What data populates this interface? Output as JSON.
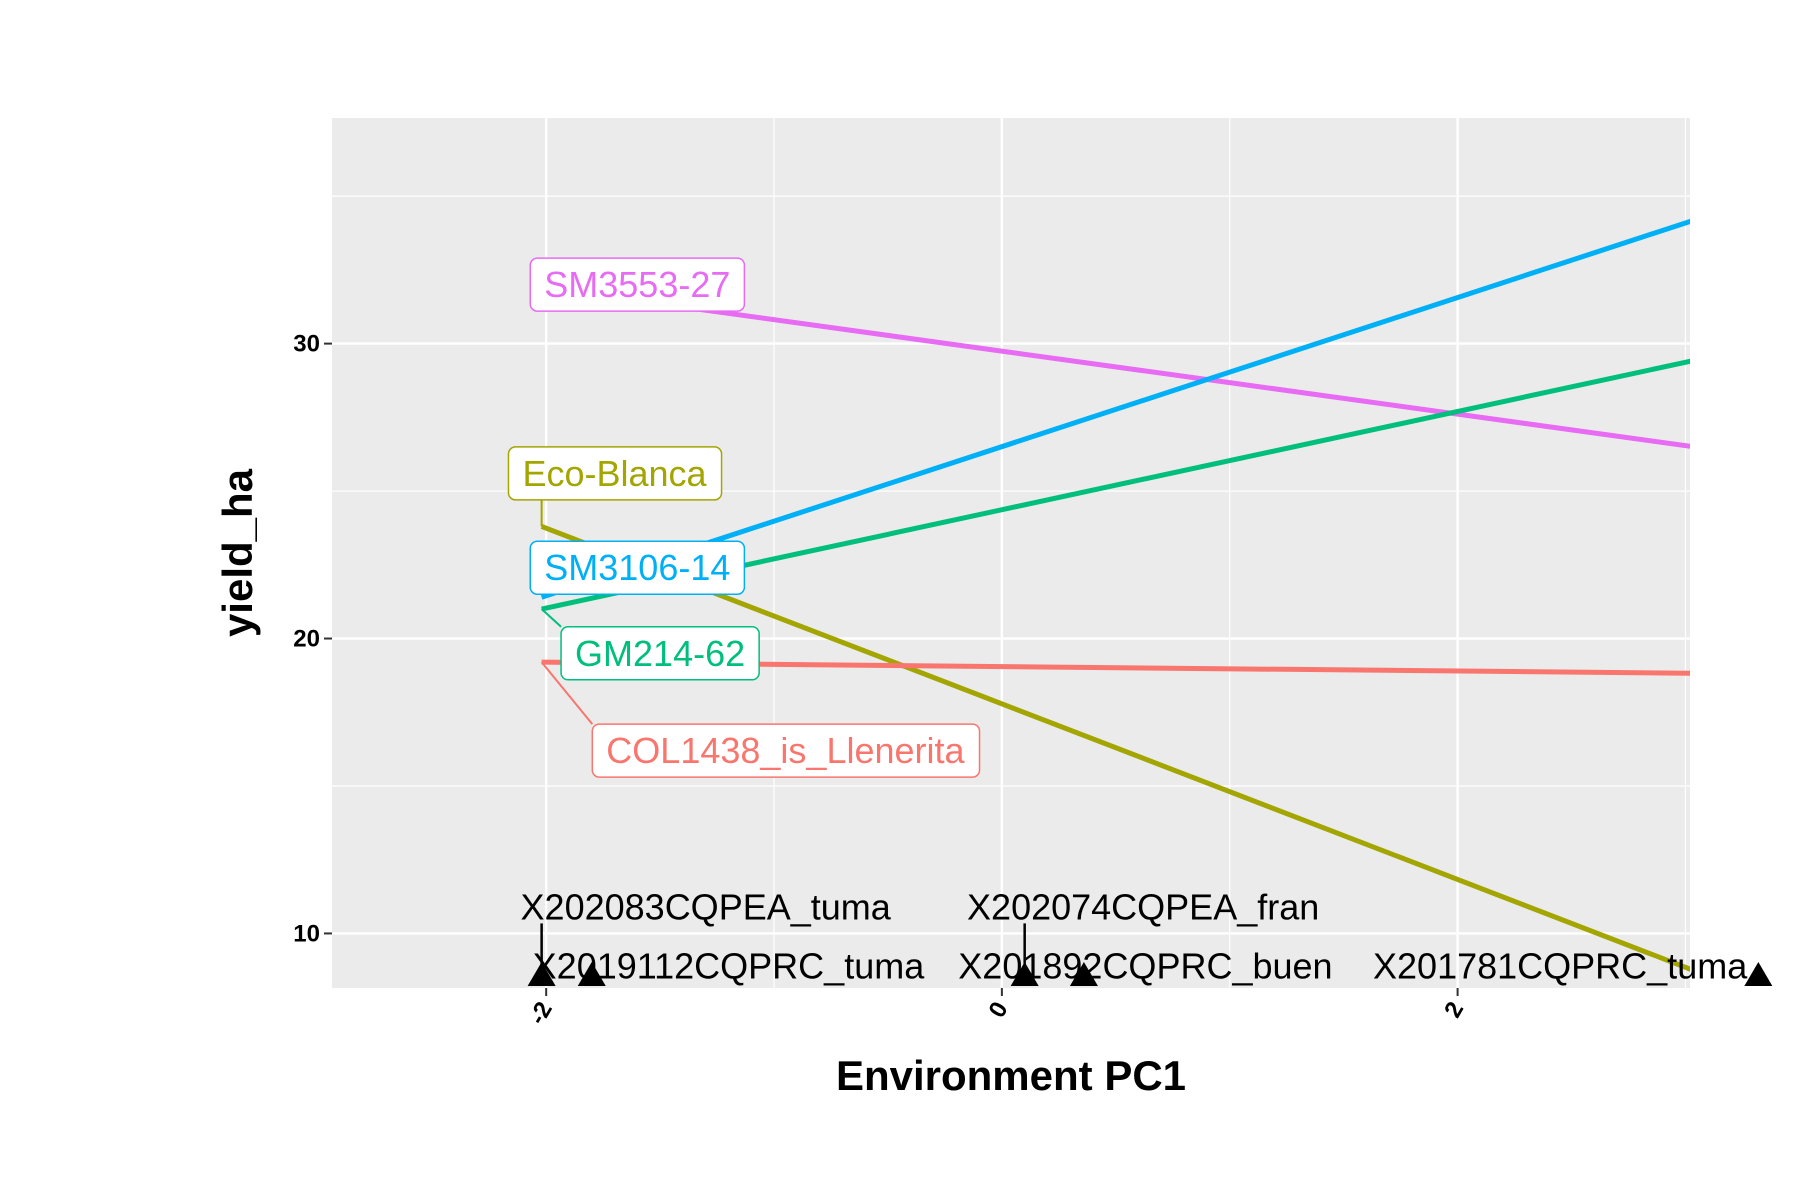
{
  "chart_data": {
    "type": "line",
    "title": "",
    "xlabel": "Environment PC1",
    "ylabel": "yield_ha",
    "xlim": [
      -2.94,
      3.02
    ],
    "ylim": [
      8.15,
      37.65
    ],
    "x_ticks": [
      {
        "value": -2,
        "label": "-2"
      },
      {
        "value": 0,
        "label": "0"
      },
      {
        "value": 2,
        "label": "2"
      }
    ],
    "y_ticks": [
      {
        "value": 10,
        "label": "10"
      },
      {
        "value": 20,
        "label": "20"
      },
      {
        "value": 30,
        "label": "30"
      }
    ],
    "grid": true,
    "legend": "none",
    "series": [
      {
        "name": "SM3553-27",
        "color": "#E76BF3",
        "x": [
          -2.02,
          3.32
        ],
        "y": [
          31.9,
          26.2
        ],
        "label_anchor": [
          -1.6,
          32.0
        ]
      },
      {
        "name": "SM3106-14",
        "color": "#00B0F6",
        "x": [
          -2.02,
          3.32
        ],
        "y": [
          21.4,
          34.9
        ],
        "label_anchor": [
          -1.6,
          22.4
        ]
      },
      {
        "name": "GM214-62",
        "color": "#00BF7D",
        "x": [
          -2.02,
          3.32
        ],
        "y": [
          21.0,
          29.9
        ],
        "label_anchor": [
          -1.5,
          19.5
        ]
      },
      {
        "name": "Eco-Blanca",
        "color": "#A3A500",
        "x": [
          -2.02,
          3.32
        ],
        "y": [
          23.8,
          7.9
        ],
        "label_anchor": [
          -1.7,
          25.6
        ]
      },
      {
        "name": "COL1438_is_Llenerita",
        "color": "#F8766D",
        "x": [
          -2.02,
          3.32
        ],
        "y": [
          19.2,
          18.8
        ],
        "label_anchor": [
          -0.95,
          16.2
        ]
      }
    ],
    "environments": [
      {
        "label": "X202083CQPEA_tuma",
        "x": -2.02,
        "label_anchor": [
          -1.3,
          10.9
        ]
      },
      {
        "label": "X2019112CQPRC_tuma",
        "x": -1.8,
        "label_anchor": [
          -1.2,
          8.9
        ]
      },
      {
        "label": "X202074CQPEA_fran",
        "x": 0.1,
        "label_anchor": [
          0.62,
          10.9
        ]
      },
      {
        "label": "X201892CQPRC_buen",
        "x": 0.36,
        "label_anchor": [
          0.63,
          8.9
        ]
      },
      {
        "label": "X201781CQPRC_tuma",
        "x": 3.32,
        "label_anchor": [
          2.45,
          8.9
        ]
      }
    ]
  }
}
